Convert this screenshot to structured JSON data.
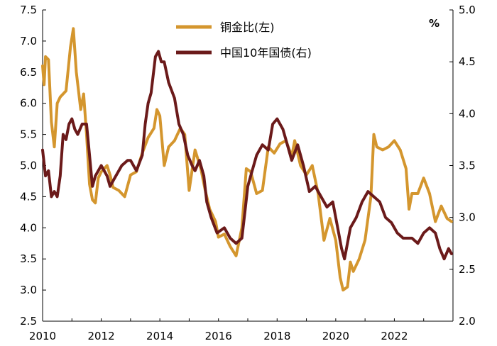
{
  "chart_data": {
    "type": "line",
    "title": "",
    "unit_label": "%",
    "x_ticks": [
      "2010",
      "2012",
      "2014",
      "2016",
      "2018",
      "2020",
      "2022"
    ],
    "xlim": [
      2010,
      2024
    ],
    "y_left": {
      "ylim": [
        2.5,
        7.5
      ],
      "ticks": [
        "2.5",
        "3.0",
        "3.5",
        "4.0",
        "4.5",
        "5.0",
        "5.5",
        "6.0",
        "6.5",
        "7.0",
        "7.5"
      ]
    },
    "y_right": {
      "ylim": [
        2.0,
        5.0
      ],
      "ticks": [
        "2.0",
        "2.5",
        "3.0",
        "3.5",
        "4.0",
        "4.5",
        "5.0"
      ]
    },
    "series": [
      {
        "name": "铜金比(左)",
        "axis": "left",
        "color": "#D4962E",
        "x": [
          2010.0,
          2010.05,
          2010.1,
          2010.2,
          2010.3,
          2010.4,
          2010.5,
          2010.6,
          2010.8,
          2010.95,
          2011.05,
          2011.15,
          2011.3,
          2011.4,
          2011.5,
          2011.6,
          2011.7,
          2011.8,
          2011.9,
          2012.0,
          2012.2,
          2012.3,
          2012.4,
          2012.6,
          2012.8,
          2013.0,
          2013.2,
          2013.4,
          2013.6,
          2013.8,
          2013.9,
          2014.0,
          2014.15,
          2014.3,
          2014.5,
          2014.7,
          2014.85,
          2015.0,
          2015.2,
          2015.4,
          2015.55,
          2015.7,
          2015.9,
          2016.0,
          2016.2,
          2016.4,
          2016.6,
          2016.8,
          2016.95,
          2017.1,
          2017.3,
          2017.5,
          2017.7,
          2017.9,
          2018.1,
          2018.3,
          2018.5,
          2018.6,
          2018.8,
          2019.0,
          2019.2,
          2019.4,
          2019.6,
          2019.8,
          2020.0,
          2020.15,
          2020.25,
          2020.4,
          2020.5,
          2020.6,
          2020.8,
          2021.0,
          2021.2,
          2021.3,
          2021.4,
          2021.6,
          2021.8,
          2022.0,
          2022.2,
          2022.4,
          2022.5,
          2022.6,
          2022.8,
          2023.0,
          2023.2,
          2023.4,
          2023.6,
          2023.8,
          2023.95
        ],
        "values": [
          6.6,
          6.3,
          6.75,
          6.7,
          5.7,
          5.3,
          6.0,
          6.1,
          6.2,
          6.9,
          7.2,
          6.5,
          5.9,
          6.15,
          5.5,
          4.7,
          4.45,
          4.4,
          4.8,
          4.9,
          5.0,
          4.85,
          4.65,
          4.6,
          4.5,
          4.85,
          4.9,
          5.2,
          5.45,
          5.6,
          5.9,
          5.8,
          5.0,
          5.3,
          5.4,
          5.6,
          5.5,
          4.6,
          5.25,
          4.95,
          4.6,
          4.3,
          4.1,
          3.85,
          3.9,
          3.7,
          3.55,
          4.0,
          4.95,
          4.9,
          4.55,
          4.6,
          5.3,
          5.2,
          5.35,
          5.4,
          5.15,
          5.4,
          5.0,
          4.85,
          5.0,
          4.55,
          3.8,
          4.15,
          3.8,
          3.2,
          3.0,
          3.05,
          3.45,
          3.3,
          3.5,
          3.8,
          4.5,
          5.5,
          5.3,
          5.25,
          5.3,
          5.4,
          5.25,
          4.95,
          4.3,
          4.55,
          4.55,
          4.8,
          4.55,
          4.1,
          4.35,
          4.15,
          4.1
        ]
      },
      {
        "name": "中国10年国债(右)",
        "axis": "right",
        "color": "#6B1A1A",
        "x": [
          2010.0,
          2010.1,
          2010.2,
          2010.3,
          2010.4,
          2010.5,
          2010.6,
          2010.7,
          2010.8,
          2010.9,
          2011.0,
          2011.1,
          2011.2,
          2011.35,
          2011.5,
          2011.6,
          2011.7,
          2011.8,
          2011.9,
          2012.0,
          2012.2,
          2012.3,
          2012.5,
          2012.7,
          2012.9,
          2013.0,
          2013.2,
          2013.4,
          2013.5,
          2013.6,
          2013.7,
          2013.85,
          2013.95,
          2014.05,
          2014.15,
          2014.3,
          2014.5,
          2014.65,
          2014.8,
          2014.95,
          2015.1,
          2015.2,
          2015.35,
          2015.5,
          2015.6,
          2015.75,
          2015.95,
          2016.2,
          2016.4,
          2016.6,
          2016.8,
          2016.9,
          2017.0,
          2017.1,
          2017.3,
          2017.5,
          2017.7,
          2017.85,
          2018.0,
          2018.1,
          2018.2,
          2018.4,
          2018.5,
          2018.7,
          2018.9,
          2019.1,
          2019.3,
          2019.5,
          2019.7,
          2019.9,
          2020.1,
          2020.2,
          2020.3,
          2020.5,
          2020.7,
          2020.9,
          2021.1,
          2021.3,
          2021.5,
          2021.7,
          2021.9,
          2022.1,
          2022.3,
          2022.5,
          2022.6,
          2022.8,
          2023.0,
          2023.2,
          2023.4,
          2023.55,
          2023.7,
          2023.85,
          2023.95
        ],
        "values": [
          3.65,
          3.4,
          3.45,
          3.2,
          3.25,
          3.2,
          3.4,
          3.8,
          3.75,
          3.9,
          3.95,
          3.85,
          3.8,
          3.9,
          3.9,
          3.6,
          3.3,
          3.4,
          3.45,
          3.5,
          3.4,
          3.3,
          3.4,
          3.5,
          3.55,
          3.55,
          3.45,
          3.6,
          3.9,
          4.1,
          4.2,
          4.55,
          4.6,
          4.5,
          4.5,
          4.3,
          4.15,
          3.9,
          3.8,
          3.6,
          3.5,
          3.45,
          3.55,
          3.4,
          3.15,
          3.0,
          2.85,
          2.9,
          2.8,
          2.75,
          2.8,
          3.05,
          3.3,
          3.4,
          3.6,
          3.7,
          3.65,
          3.9,
          3.95,
          3.9,
          3.85,
          3.65,
          3.55,
          3.7,
          3.5,
          3.25,
          3.3,
          3.2,
          3.1,
          3.15,
          2.85,
          2.7,
          2.6,
          2.9,
          3.0,
          3.15,
          3.25,
          3.2,
          3.15,
          3.0,
          2.95,
          2.85,
          2.8,
          2.8,
          2.8,
          2.75,
          2.85,
          2.9,
          2.85,
          2.7,
          2.6,
          2.7,
          2.65
        ]
      }
    ],
    "legend": "top-center"
  }
}
